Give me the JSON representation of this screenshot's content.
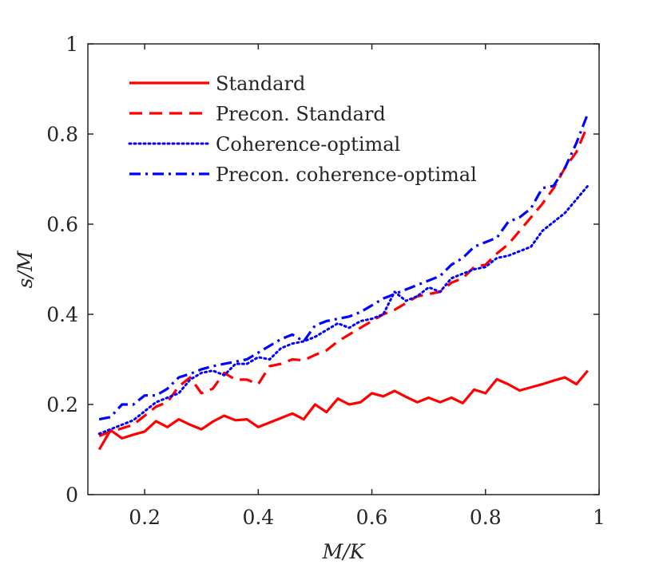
{
  "chart_data": {
    "type": "line",
    "title": "",
    "xlabel": "M/K",
    "ylabel": "s/M",
    "xlim": [
      0.1,
      1.0
    ],
    "ylim": [
      0,
      1
    ],
    "xticks": [
      0.2,
      0.4,
      0.6,
      0.8,
      1
    ],
    "xtick_labels": [
      "0.2",
      "0.4",
      "0.6",
      "0.8",
      "1"
    ],
    "yticks": [
      0,
      0.2,
      0.4,
      0.6,
      0.8,
      1
    ],
    "ytick_labels": [
      "0",
      "0.2",
      "0.4",
      "0.6",
      "0.8",
      "1"
    ],
    "grid": false,
    "legend_position": "top-left",
    "series": [
      {
        "name": "Standard",
        "color": "#ff0000",
        "style": "solid",
        "x": [
          0.12,
          0.14,
          0.16,
          0.18,
          0.2,
          0.22,
          0.24,
          0.26,
          0.28,
          0.3,
          0.32,
          0.34,
          0.36,
          0.38,
          0.4,
          0.42,
          0.44,
          0.46,
          0.48,
          0.5,
          0.52,
          0.54,
          0.56,
          0.58,
          0.6,
          0.62,
          0.64,
          0.66,
          0.68,
          0.7,
          0.72,
          0.74,
          0.76,
          0.78,
          0.8,
          0.82,
          0.84,
          0.86,
          0.88,
          0.9,
          0.92,
          0.94,
          0.96,
          0.98
        ],
        "y": [
          0.1,
          0.143,
          0.125,
          0.133,
          0.14,
          0.163,
          0.15,
          0.167,
          0.155,
          0.145,
          0.162,
          0.175,
          0.165,
          0.167,
          0.15,
          0.16,
          0.17,
          0.18,
          0.167,
          0.2,
          0.183,
          0.213,
          0.2,
          0.205,
          0.225,
          0.218,
          0.23,
          0.217,
          0.205,
          0.215,
          0.205,
          0.215,
          0.203,
          0.233,
          0.225,
          0.256,
          0.245,
          0.231,
          0.238,
          0.245,
          0.253,
          0.26,
          0.245,
          0.275
        ]
      },
      {
        "name": "Precon. Standard",
        "color": "#ff0000",
        "style": "dashed",
        "x": [
          0.12,
          0.14,
          0.16,
          0.18,
          0.2,
          0.22,
          0.24,
          0.26,
          0.28,
          0.3,
          0.32,
          0.34,
          0.36,
          0.38,
          0.4,
          0.42,
          0.44,
          0.46,
          0.48,
          0.5,
          0.52,
          0.54,
          0.56,
          0.58,
          0.6,
          0.62,
          0.64,
          0.66,
          0.68,
          0.7,
          0.72,
          0.74,
          0.76,
          0.78,
          0.8,
          0.82,
          0.84,
          0.86,
          0.88,
          0.9,
          0.92,
          0.94,
          0.96,
          0.98
        ],
        "y": [
          0.13,
          0.14,
          0.147,
          0.155,
          0.175,
          0.195,
          0.205,
          0.24,
          0.26,
          0.225,
          0.235,
          0.27,
          0.255,
          0.255,
          0.245,
          0.285,
          0.29,
          0.3,
          0.298,
          0.31,
          0.32,
          0.34,
          0.355,
          0.37,
          0.385,
          0.4,
          0.41,
          0.425,
          0.44,
          0.445,
          0.45,
          0.47,
          0.48,
          0.505,
          0.51,
          0.535,
          0.555,
          0.585,
          0.615,
          0.645,
          0.68,
          0.725,
          0.76,
          0.82
        ]
      },
      {
        "name": "Coherence-optimal",
        "color": "#0000ff",
        "style": "dotted",
        "x": [
          0.12,
          0.14,
          0.16,
          0.18,
          0.2,
          0.22,
          0.24,
          0.26,
          0.28,
          0.3,
          0.32,
          0.34,
          0.36,
          0.38,
          0.4,
          0.42,
          0.44,
          0.46,
          0.48,
          0.5,
          0.52,
          0.54,
          0.56,
          0.58,
          0.6,
          0.62,
          0.64,
          0.66,
          0.68,
          0.7,
          0.72,
          0.74,
          0.76,
          0.78,
          0.8,
          0.82,
          0.84,
          0.86,
          0.88,
          0.9,
          0.92,
          0.94,
          0.96,
          0.98
        ],
        "y": [
          0.135,
          0.145,
          0.155,
          0.165,
          0.185,
          0.205,
          0.215,
          0.225,
          0.255,
          0.27,
          0.275,
          0.265,
          0.29,
          0.29,
          0.305,
          0.3,
          0.325,
          0.335,
          0.34,
          0.35,
          0.365,
          0.38,
          0.37,
          0.385,
          0.39,
          0.4,
          0.45,
          0.43,
          0.44,
          0.46,
          0.45,
          0.48,
          0.49,
          0.5,
          0.505,
          0.525,
          0.53,
          0.54,
          0.55,
          0.585,
          0.605,
          0.625,
          0.655,
          0.685
        ]
      },
      {
        "name": "Precon. coherence-optimal",
        "color": "#0000ff",
        "style": "dashdot",
        "x": [
          0.12,
          0.14,
          0.16,
          0.18,
          0.2,
          0.22,
          0.24,
          0.26,
          0.28,
          0.3,
          0.32,
          0.34,
          0.36,
          0.38,
          0.4,
          0.42,
          0.44,
          0.46,
          0.48,
          0.5,
          0.52,
          0.54,
          0.56,
          0.58,
          0.6,
          0.62,
          0.64,
          0.66,
          0.68,
          0.7,
          0.72,
          0.74,
          0.76,
          0.78,
          0.8,
          0.82,
          0.84,
          0.86,
          0.88,
          0.9,
          0.92,
          0.94,
          0.96,
          0.98
        ],
        "y": [
          0.167,
          0.172,
          0.2,
          0.2,
          0.22,
          0.22,
          0.235,
          0.26,
          0.268,
          0.278,
          0.285,
          0.29,
          0.295,
          0.3,
          0.315,
          0.33,
          0.345,
          0.355,
          0.34,
          0.375,
          0.385,
          0.39,
          0.395,
          0.405,
          0.42,
          0.435,
          0.445,
          0.455,
          0.465,
          0.475,
          0.485,
          0.51,
          0.525,
          0.55,
          0.56,
          0.57,
          0.605,
          0.615,
          0.635,
          0.68,
          0.685,
          0.725,
          0.78,
          0.845
        ]
      }
    ]
  }
}
